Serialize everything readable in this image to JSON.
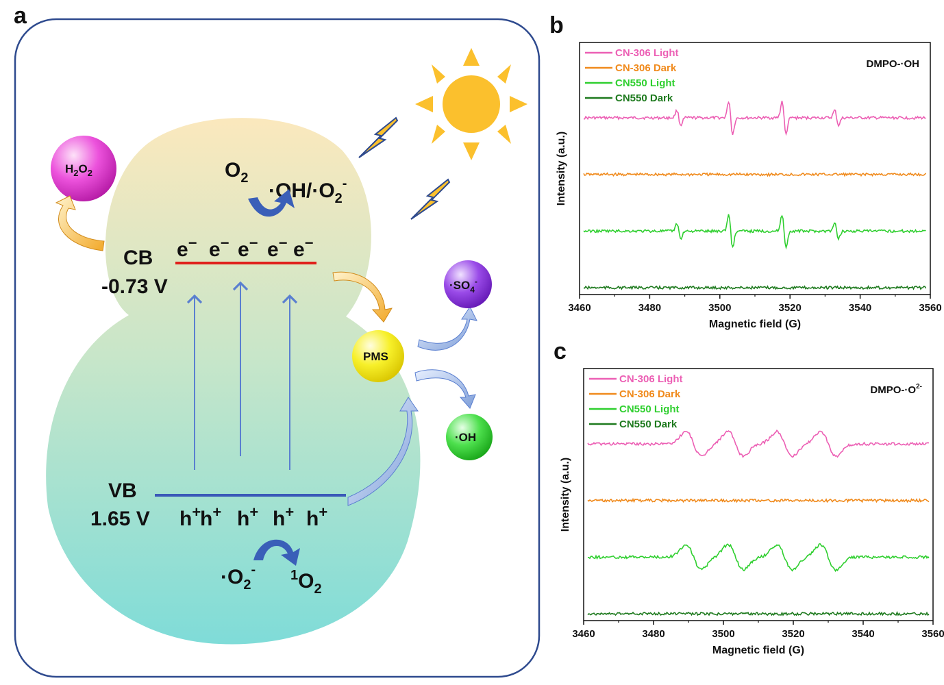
{
  "panel_a": {
    "label": "a",
    "cb": {
      "name": "CB",
      "potential": "-0.73 V",
      "electrons": [
        "e-",
        "e-",
        "e-",
        "e-",
        "e-"
      ]
    },
    "vb": {
      "name": "VB",
      "potential": "1.65 V",
      "holes": [
        "h+",
        "h+",
        "h+",
        "h+",
        "h+"
      ]
    },
    "o2_label": "O2",
    "oh_o2_label": "·OH/·O2-",
    "superoxide_label": "·O2-",
    "singlet_oxygen_label": "1O2",
    "h2o2_label": "H2O2",
    "pms_label": "PMS",
    "so4_label": "·SO4-",
    "oh_label": "·OH",
    "colors": {
      "cb_line": "#e0201b",
      "vb_line": "#3a58b8",
      "frame": "#2e4a8e",
      "h2o2_ball": "#e83fd6",
      "pms_ball": "#f6ee1c",
      "so4_ball": "#8a3fd6",
      "oh_ball": "#3fd63f"
    }
  },
  "charts": [
    {
      "label": "b",
      "annotation": "DMPO-·OH",
      "chart_data": {
        "type": "line",
        "title": "",
        "xlabel": "Magnetic field (G)",
        "ylabel": "Intensity (a.u.)",
        "xlim": [
          3460,
          3560
        ],
        "xticks": [
          3460,
          3480,
          3500,
          3520,
          3540,
          3560
        ],
        "legend_position": "top-left",
        "signal_type": "DMPO-OH quartet (1:2:2:1)",
        "line_centers": [
          3488.3,
          3503.1,
          3518.3,
          3533.3
        ],
        "series": [
          {
            "name": "CN-306 Light",
            "color": "#ec5fb4",
            "baseline": 3.3,
            "relative_amplitudes": [
              0.45,
              1.0,
              1.0,
              0.45
            ]
          },
          {
            "name": "CN-306 Dark",
            "color": "#f08a1c",
            "baseline": 2.3,
            "relative_amplitudes": [
              0,
              0,
              0,
              0
            ]
          },
          {
            "name": "CN550 Light",
            "color": "#2fcf2f",
            "baseline": 1.3,
            "relative_amplitudes": [
              0.45,
              1.0,
              1.0,
              0.45
            ]
          },
          {
            "name": "CN550 Dark",
            "color": "#1e7a1e",
            "baseline": 0.3,
            "relative_amplitudes": [
              0,
              0,
              0,
              0
            ]
          }
        ]
      }
    },
    {
      "label": "c",
      "annotation": "DMPO-·O2-",
      "chart_data": {
        "type": "line",
        "title": "",
        "xlabel": "Magnetic field (G)",
        "ylabel": "Intensity (a.u.)",
        "xlim": [
          3460,
          3560
        ],
        "xticks": [
          3460,
          3480,
          3500,
          3520,
          3540,
          3560
        ],
        "legend_position": "top-left",
        "signal_type": "DMPO-O2- sextet-like broad signal",
        "line_centers": [
          3491.5,
          3503.5,
          3517.5,
          3530.0
        ],
        "series": [
          {
            "name": "CN-306 Light",
            "color": "#ec5fb4",
            "baseline": 3.3,
            "relative_amplitudes": [
              1.0,
              1.0,
              1.0,
              1.0
            ]
          },
          {
            "name": "CN-306 Dark",
            "color": "#f08a1c",
            "baseline": 2.3,
            "relative_amplitudes": [
              0,
              0,
              0,
              0
            ]
          },
          {
            "name": "CN550 Light",
            "color": "#2fcf2f",
            "baseline": 1.3,
            "relative_amplitudes": [
              1.0,
              1.0,
              1.0,
              1.0
            ]
          },
          {
            "name": "CN550 Dark",
            "color": "#1e7a1e",
            "baseline": 0.3,
            "relative_amplitudes": [
              0,
              0,
              0,
              0
            ]
          }
        ]
      }
    }
  ]
}
